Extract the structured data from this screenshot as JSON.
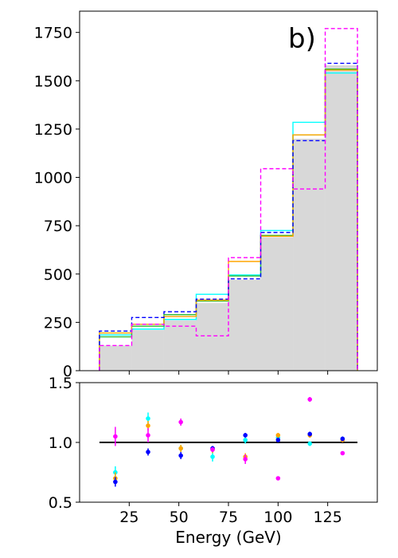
{
  "panel_label": "b)",
  "chart_data": [
    {
      "type": "histogram",
      "bin_edges": [
        10,
        26.25,
        42.5,
        58.75,
        75,
        91.25,
        107.5,
        123.75,
        140
      ],
      "ylim": [
        0,
        1860
      ],
      "yticks": [
        0,
        250,
        500,
        750,
        1000,
        1250,
        1500,
        1750
      ],
      "grid": false,
      "filled": {
        "color": "#d8d8d8",
        "values": [
          130,
          210,
          260,
          350,
          470,
          690,
          1200,
          1580
        ]
      },
      "series": [
        {
          "color": "#00ffff",
          "dash": "solid",
          "values": [
            185,
            215,
            265,
            395,
            495,
            725,
            1285,
            1540
          ]
        },
        {
          "color": "#33bb33",
          "dash": "solid",
          "values": [
            175,
            230,
            290,
            360,
            490,
            700,
            1220,
            1560
          ]
        },
        {
          "color": "#ffa500",
          "dash": "solid",
          "values": [
            195,
            240,
            280,
            365,
            565,
            695,
            1220,
            1555
          ]
        },
        {
          "color": "#0000ff",
          "dash": "dashed",
          "values": [
            205,
            275,
            305,
            370,
            475,
            715,
            1190,
            1590
          ]
        },
        {
          "color": "#ff00ff",
          "dash": "dashed",
          "values": [
            130,
            240,
            230,
            180,
            585,
            1045,
            940,
            1770
          ]
        }
      ]
    },
    {
      "type": "scatter",
      "xlabel": "Energy (GeV)",
      "xlim": [
        0,
        150
      ],
      "ylim": [
        0.5,
        1.5
      ],
      "xticks": [
        25,
        50,
        75,
        100,
        125
      ],
      "yticks": [
        "0.5",
        "1.0",
        "1.5"
      ],
      "reference_line": {
        "y": 1.0,
        "x_start": 10,
        "x_end": 140,
        "color": "#000000"
      },
      "series": [
        {
          "color": "#00ffff",
          "points": [
            [
              18,
              0.75,
              0.05
            ],
            [
              34.5,
              1.2,
              0.05
            ],
            [
              51,
              0.95,
              0.03
            ],
            [
              67,
              0.88,
              0.04
            ],
            [
              83.5,
              1.02,
              0.03
            ],
            [
              100,
              1.04,
              0.02
            ],
            [
              116,
              0.99,
              0.02
            ],
            [
              132.5,
              1.03,
              0.02
            ]
          ]
        },
        {
          "color": "#ffa500",
          "points": [
            [
              18,
              0.7,
              0.05
            ],
            [
              34.5,
              1.14,
              0.04
            ],
            [
              51,
              0.95,
              0.03
            ],
            [
              67,
              0.94,
              0.03
            ],
            [
              83.5,
              0.88,
              0.03
            ],
            [
              100,
              1.06,
              0.02
            ],
            [
              116,
              1.06,
              0.02
            ],
            [
              132.5,
              1.02,
              0.02
            ]
          ]
        },
        {
          "color": "#0000ff",
          "points": [
            [
              18,
              0.67,
              0.04
            ],
            [
              34.5,
              0.92,
              0.03
            ],
            [
              51,
              0.89,
              0.03
            ],
            [
              67,
              0.95,
              0.02
            ],
            [
              83.5,
              1.06,
              0.02
            ],
            [
              100,
              1.02,
              0.02
            ],
            [
              116,
              1.07,
              0.02
            ],
            [
              132.5,
              1.03,
              0.02
            ]
          ]
        },
        {
          "color": "#ff00ff",
          "points": [
            [
              18,
              1.05,
              0.08
            ],
            [
              34.5,
              1.06,
              0.06
            ],
            [
              51,
              1.17,
              0.03
            ],
            [
              67,
              0.94,
              0.02
            ],
            [
              83.5,
              0.86,
              0.04
            ],
            [
              100,
              0.7,
              0.01
            ],
            [
              116,
              1.36,
              0.02
            ],
            [
              132.5,
              0.91,
              0.01
            ]
          ]
        }
      ]
    }
  ]
}
